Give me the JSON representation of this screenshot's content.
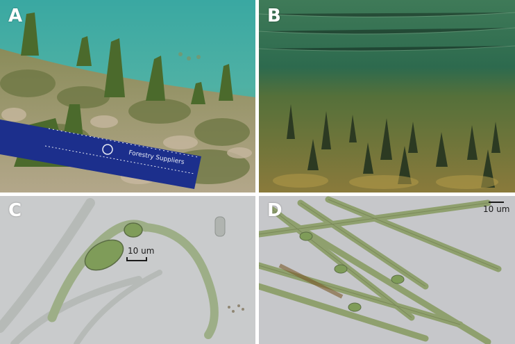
{
  "panels": [
    {
      "label": "A"
    },
    {
      "label": "B"
    },
    {
      "label": "C",
      "scale_bar": "10 um"
    },
    {
      "label": "D",
      "scale_bar": "10 um"
    }
  ],
  "ruler": {
    "brand_text": "Forestry Suppliers"
  },
  "colors": {
    "water_A": "#2f9a93",
    "water_B": "#2d6a4e",
    "micro_bg": "#c9cbcc",
    "filament": "#7f9c59"
  }
}
